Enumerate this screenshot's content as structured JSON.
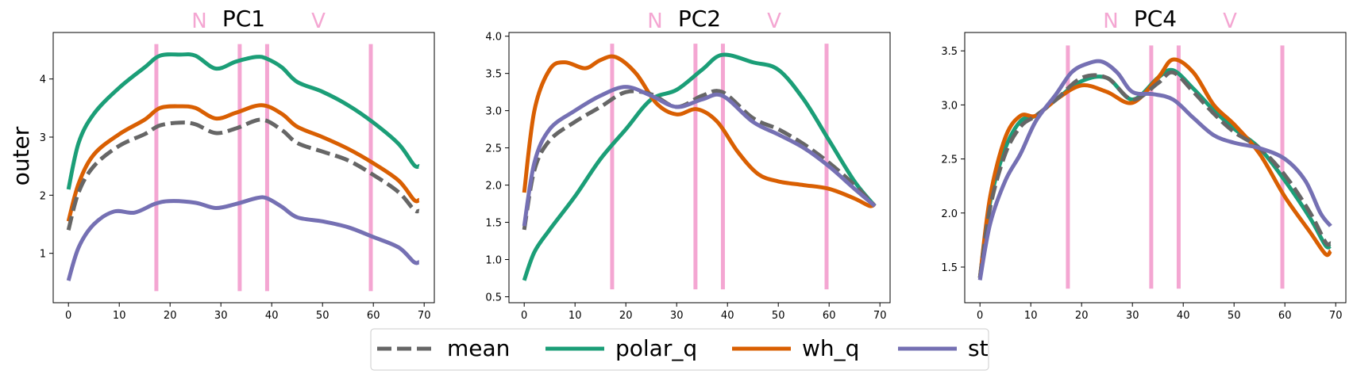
{
  "figure": {
    "ylabel": "outer",
    "legend": {
      "placement": "bottom-center",
      "entries": [
        {
          "label": "mean",
          "color": "#666666",
          "dashed": true
        },
        {
          "label": "polar_q",
          "color": "#1b9e77",
          "dashed": false
        },
        {
          "label": "wh_q",
          "color": "#d95f02",
          "dashed": false
        },
        {
          "label": "st",
          "color": "#7570b3",
          "dashed": false
        }
      ]
    },
    "marker_color": "#f4a6d2"
  },
  "chart_data": [
    {
      "type": "line",
      "title": "PC1",
      "title_markers": [
        "N",
        "V"
      ],
      "xlabel": "",
      "ylabel": "outer",
      "xlim": [
        -3,
        72
      ],
      "ylim": [
        0.15,
        4.8
      ],
      "xticks": [
        0,
        10,
        20,
        30,
        40,
        50,
        60,
        70
      ],
      "yticks": [
        1,
        2,
        3,
        4
      ],
      "vlines": [
        17.3,
        33.7,
        39.1,
        59.5
      ],
      "vline_range": [
        0.35,
        4.6
      ],
      "series": [
        {
          "name": "polar_q",
          "color": "#1b9e77",
          "dashed": false,
          "x": [
            0,
            2,
            5,
            10,
            15,
            18,
            22,
            25,
            29,
            33,
            37,
            39,
            42,
            45,
            50,
            55,
            60,
            65,
            68,
            69
          ],
          "y": [
            2.1,
            2.9,
            3.4,
            3.85,
            4.2,
            4.4,
            4.42,
            4.4,
            4.18,
            4.3,
            4.38,
            4.35,
            4.2,
            3.95,
            3.78,
            3.55,
            3.25,
            2.88,
            2.52,
            2.5
          ]
        },
        {
          "name": "wh_q",
          "color": "#d95f02",
          "dashed": false,
          "x": [
            0,
            2,
            5,
            10,
            15,
            18,
            22,
            25,
            29,
            33,
            38,
            42,
            45,
            50,
            55,
            60,
            65,
            68,
            69
          ],
          "y": [
            1.55,
            2.2,
            2.7,
            3.05,
            3.3,
            3.5,
            3.53,
            3.5,
            3.32,
            3.42,
            3.55,
            3.4,
            3.18,
            3.0,
            2.8,
            2.55,
            2.25,
            1.92,
            1.92
          ]
        },
        {
          "name": "mean",
          "color": "#666666",
          "dashed": true,
          "x": [
            0,
            2,
            5,
            10,
            15,
            18,
            22,
            25,
            29,
            33,
            38,
            42,
            45,
            50,
            55,
            60,
            65,
            68,
            69
          ],
          "y": [
            1.4,
            2.05,
            2.5,
            2.85,
            3.05,
            3.2,
            3.25,
            3.22,
            3.07,
            3.15,
            3.3,
            3.12,
            2.9,
            2.75,
            2.6,
            2.35,
            2.05,
            1.75,
            1.73
          ]
        },
        {
          "name": "st",
          "color": "#7570b3",
          "dashed": false,
          "x": [
            0,
            2,
            5,
            9,
            13,
            17,
            20,
            25,
            29,
            33,
            37,
            39,
            42,
            45,
            50,
            55,
            60,
            65,
            68,
            69
          ],
          "y": [
            0.53,
            1.1,
            1.5,
            1.72,
            1.7,
            1.85,
            1.9,
            1.87,
            1.78,
            1.85,
            1.95,
            1.95,
            1.8,
            1.62,
            1.55,
            1.45,
            1.28,
            1.1,
            0.85,
            0.85
          ]
        }
      ]
    },
    {
      "type": "line",
      "title": "PC2",
      "title_markers": [
        "N",
        "V"
      ],
      "xlabel": "",
      "ylabel": "",
      "xlim": [
        -3,
        72
      ],
      "ylim": [
        0.42,
        4.05
      ],
      "xticks": [
        0,
        10,
        20,
        30,
        40,
        50,
        60,
        70
      ],
      "yticks": [
        0.5,
        1.0,
        1.5,
        2.0,
        2.5,
        3.0,
        3.5,
        4.0
      ],
      "vlines": [
        17.3,
        33.7,
        39.1,
        59.5
      ],
      "vline_range": [
        0.6,
        3.9
      ],
      "series": [
        {
          "name": "polar_q",
          "color": "#1b9e77",
          "dashed": false,
          "x": [
            0,
            2,
            5,
            10,
            15,
            20,
            25,
            30,
            35,
            39,
            45,
            50,
            55,
            60,
            65,
            69
          ],
          "y": [
            0.72,
            1.1,
            1.4,
            1.85,
            2.35,
            2.75,
            3.15,
            3.28,
            3.55,
            3.75,
            3.65,
            3.55,
            3.15,
            2.6,
            2.05,
            1.72
          ]
        },
        {
          "name": "wh_q",
          "color": "#d95f02",
          "dashed": false,
          "x": [
            0,
            2,
            5,
            8,
            12,
            15,
            18,
            22,
            26,
            30,
            34,
            38,
            42,
            46,
            50,
            55,
            60,
            65,
            68,
            69
          ],
          "y": [
            1.9,
            3.0,
            3.55,
            3.65,
            3.57,
            3.68,
            3.72,
            3.5,
            3.1,
            2.95,
            3.02,
            2.85,
            2.45,
            2.15,
            2.05,
            2.0,
            1.95,
            1.82,
            1.72,
            1.75
          ]
        },
        {
          "name": "mean",
          "color": "#666666",
          "dashed": true,
          "x": [
            0,
            2,
            5,
            10,
            15,
            20,
            25,
            30,
            35,
            39,
            45,
            50,
            55,
            60,
            65,
            69
          ],
          "y": [
            1.4,
            2.2,
            2.6,
            2.85,
            3.05,
            3.25,
            3.22,
            3.05,
            3.2,
            3.25,
            2.9,
            2.75,
            2.55,
            2.3,
            2.0,
            1.72
          ]
        },
        {
          "name": "st",
          "color": "#7570b3",
          "dashed": false,
          "x": [
            0,
            2,
            5,
            10,
            15,
            20,
            25,
            30,
            35,
            39,
            45,
            50,
            55,
            60,
            65,
            69
          ],
          "y": [
            1.45,
            2.3,
            2.75,
            3.0,
            3.2,
            3.32,
            3.2,
            3.05,
            3.15,
            3.2,
            2.85,
            2.68,
            2.5,
            2.25,
            1.95,
            1.72
          ]
        }
      ]
    },
    {
      "type": "line",
      "title": "PC4",
      "title_markers": [
        "N",
        "V"
      ],
      "xlabel": "",
      "ylabel": "",
      "xlim": [
        -3,
        72
      ],
      "ylim": [
        1.17,
        3.67
      ],
      "xticks": [
        0,
        10,
        20,
        30,
        40,
        50,
        60,
        70
      ],
      "yticks": [
        1.5,
        2.0,
        2.5,
        3.0,
        3.5
      ],
      "vlines": [
        17.3,
        33.7,
        39.1,
        59.5
      ],
      "vline_range": [
        1.3,
        3.55
      ],
      "series": [
        {
          "name": "polar_q",
          "color": "#1b9e77",
          "dashed": false,
          "x": [
            0,
            2,
            5,
            8,
            11,
            15,
            20,
            25,
            30,
            35,
            38,
            42,
            46,
            50,
            55,
            60,
            65,
            68,
            69
          ],
          "y": [
            1.4,
            2.1,
            2.6,
            2.85,
            2.9,
            3.05,
            3.22,
            3.25,
            3.05,
            3.25,
            3.32,
            3.15,
            2.95,
            2.78,
            2.6,
            2.3,
            1.95,
            1.7,
            1.7
          ]
        },
        {
          "name": "wh_q",
          "color": "#d95f02",
          "dashed": false,
          "x": [
            0,
            2,
            5,
            8,
            11,
            15,
            20,
            25,
            30,
            35,
            38,
            42,
            46,
            50,
            55,
            60,
            65,
            68,
            69
          ],
          "y": [
            1.4,
            2.15,
            2.7,
            2.9,
            2.9,
            3.05,
            3.18,
            3.12,
            3.02,
            3.25,
            3.42,
            3.3,
            3.0,
            2.82,
            2.55,
            2.15,
            1.82,
            1.62,
            1.65
          ]
        },
        {
          "name": "mean",
          "color": "#666666",
          "dashed": true,
          "x": [
            0,
            2,
            5,
            8,
            11,
            15,
            20,
            25,
            30,
            35,
            38,
            42,
            46,
            50,
            55,
            60,
            65,
            68,
            69
          ],
          "y": [
            1.4,
            2.05,
            2.55,
            2.8,
            2.9,
            3.05,
            3.25,
            3.25,
            3.05,
            3.2,
            3.3,
            3.12,
            2.92,
            2.75,
            2.6,
            2.35,
            2.0,
            1.73,
            1.72
          ]
        },
        {
          "name": "st",
          "color": "#7570b3",
          "dashed": false,
          "x": [
            0,
            2,
            5,
            8,
            11,
            15,
            18,
            21,
            24,
            27,
            30,
            34,
            38,
            42,
            46,
            50,
            55,
            60,
            64,
            67,
            69
          ],
          "y": [
            1.38,
            1.9,
            2.3,
            2.55,
            2.85,
            3.1,
            3.3,
            3.38,
            3.4,
            3.3,
            3.12,
            3.1,
            3.05,
            2.88,
            2.72,
            2.65,
            2.6,
            2.5,
            2.3,
            2.0,
            1.88
          ]
        }
      ]
    }
  ]
}
